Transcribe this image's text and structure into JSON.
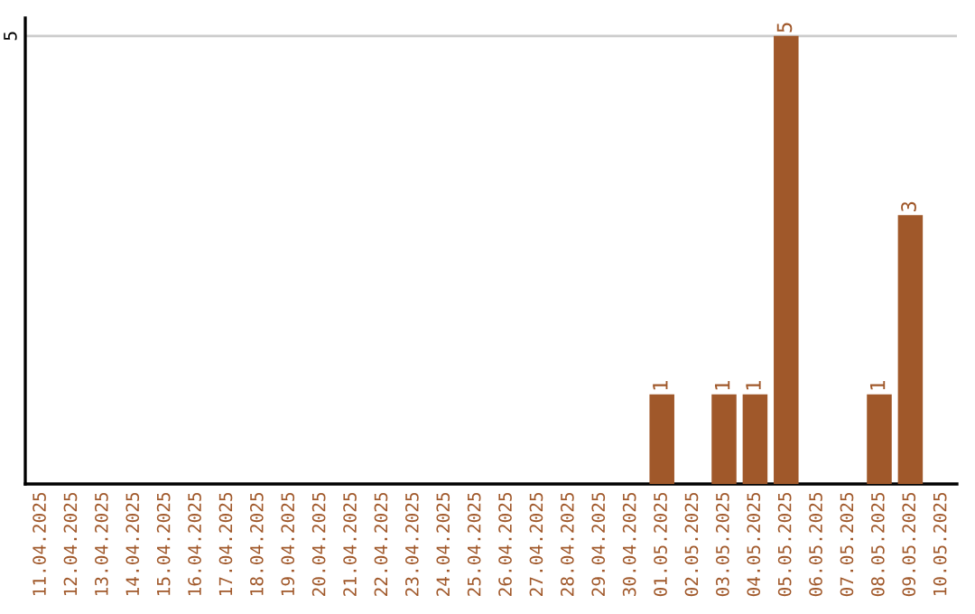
{
  "chart_data": {
    "type": "bar",
    "categories": [
      "11.04.2025",
      "12.04.2025",
      "13.04.2025",
      "14.04.2025",
      "15.04.2025",
      "16.04.2025",
      "17.04.2025",
      "18.04.2025",
      "19.04.2025",
      "20.04.2025",
      "21.04.2025",
      "22.04.2025",
      "23.04.2025",
      "24.04.2025",
      "25.04.2025",
      "26.04.2025",
      "27.04.2025",
      "28.04.2025",
      "29.04.2025",
      "30.04.2025",
      "01.05.2025",
      "02.05.2025",
      "03.05.2025",
      "04.05.2025",
      "05.05.2025",
      "06.05.2025",
      "07.05.2025",
      "08.05.2025",
      "09.05.2025",
      "10.05.2025"
    ],
    "values": [
      null,
      null,
      null,
      null,
      null,
      null,
      null,
      null,
      null,
      null,
      null,
      null,
      null,
      null,
      null,
      null,
      null,
      null,
      null,
      null,
      1,
      null,
      1,
      1,
      5,
      null,
      null,
      1,
      3,
      null
    ],
    "data_labels": true,
    "ylim": [
      0,
      5.2
    ],
    "color": "#a0582a",
    "ref_lines": [
      {
        "axis": "y",
        "value": 5,
        "label": "5",
        "color": "#cccccc"
      }
    ]
  }
}
